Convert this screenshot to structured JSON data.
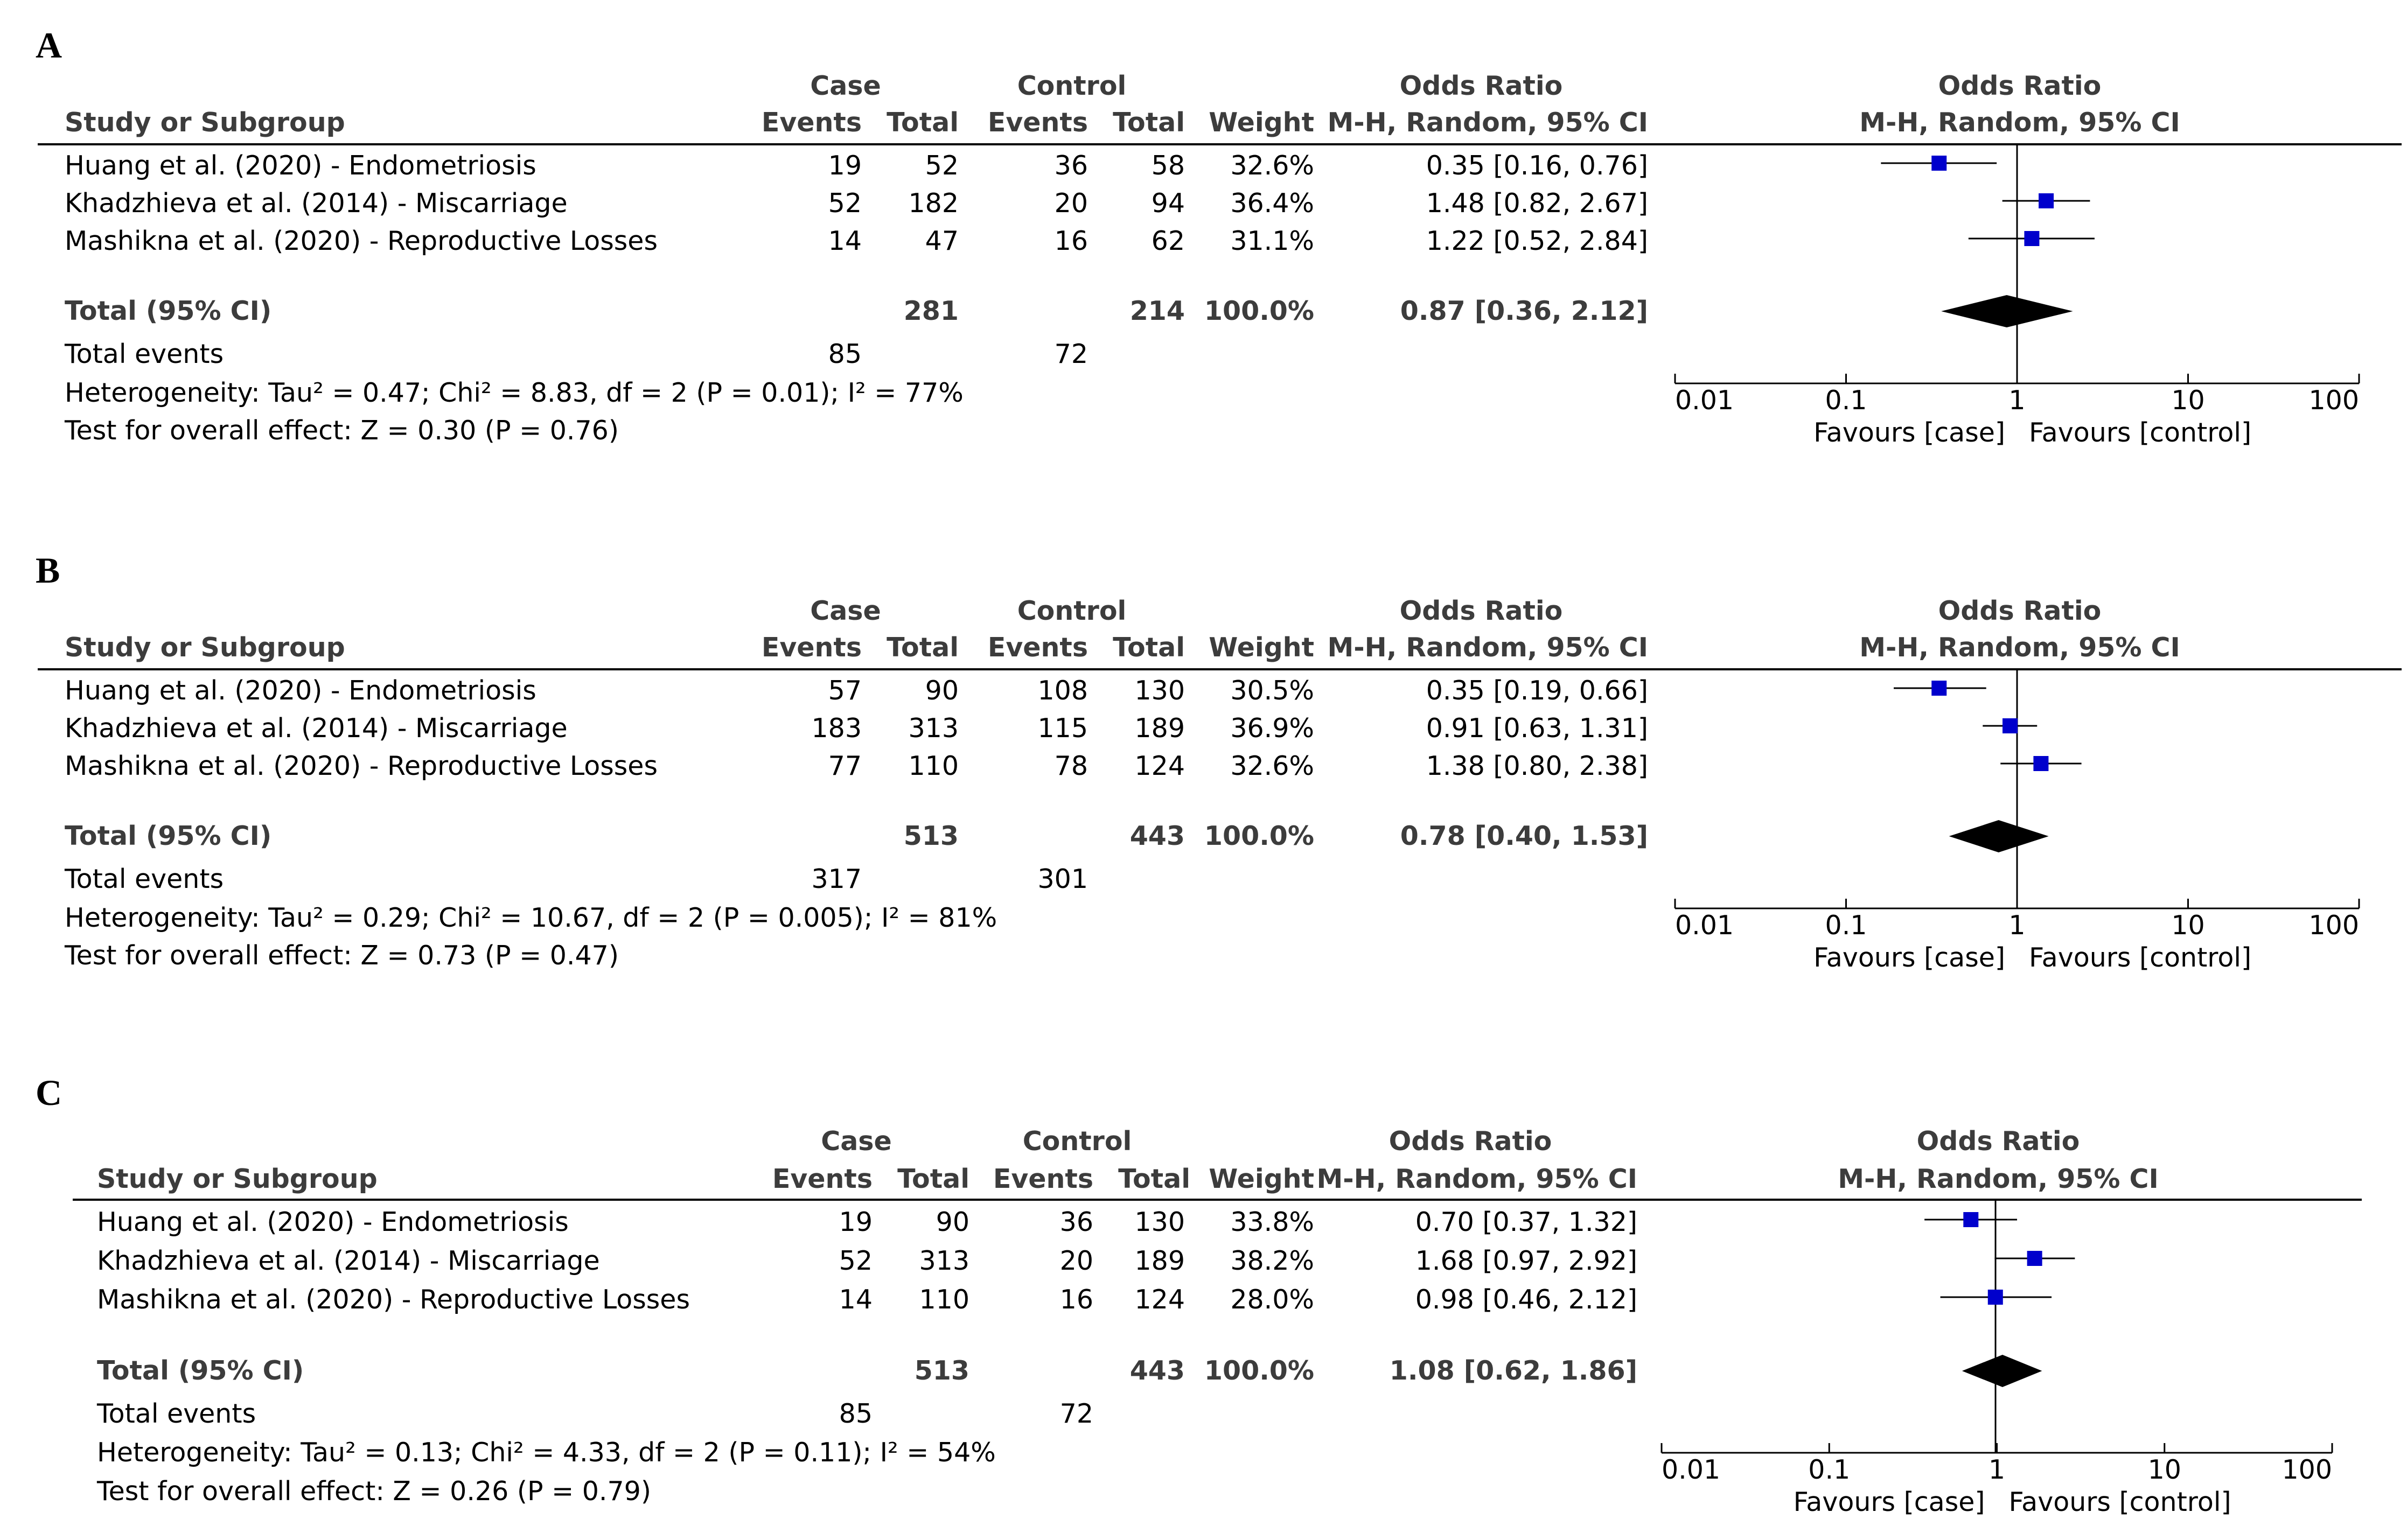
{
  "colors": {
    "marker": "#0000cc",
    "diamond": "#000000",
    "line": "#000000"
  },
  "headers": {
    "case": "Case",
    "control": "Control",
    "odds_ratio": "Odds Ratio",
    "study_or_subgroup": "Study or Subgroup",
    "events": "Events",
    "total": "Total",
    "weight": "Weight",
    "method": "M-H, Random, 95% CI"
  },
  "chart_data": [
    {
      "type": "forest",
      "panel": "A",
      "xscale": "log",
      "xlim": [
        0.01,
        100
      ],
      "xticks": [
        "0.01",
        "0.1",
        "1",
        "10",
        "100"
      ],
      "favours_left": "Favours [case]",
      "favours_right": "Favours [control]",
      "studies": [
        {
          "name": "Huang et al. (2020) - Endometriosis",
          "case_events": "19",
          "case_total": "52",
          "control_events": "36",
          "control_total": "58",
          "weight": "32.6%",
          "ci_text": "0.35 [0.16, 0.76]",
          "or": 0.35,
          "lo": 0.16,
          "hi": 0.76
        },
        {
          "name": "Khadzhieva et al. (2014) - Miscarriage",
          "case_events": "52",
          "case_total": "182",
          "control_events": "20",
          "control_total": "94",
          "weight": "36.4%",
          "ci_text": "1.48 [0.82, 2.67]",
          "or": 1.48,
          "lo": 0.82,
          "hi": 2.67
        },
        {
          "name": "Mashikna et al. (2020) - Reproductive Losses",
          "case_events": "14",
          "case_total": "47",
          "control_events": "16",
          "control_total": "62",
          "weight": "31.1%",
          "ci_text": "1.22 [0.52, 2.84]",
          "or": 1.22,
          "lo": 0.52,
          "hi": 2.84
        }
      ],
      "total": {
        "label": "Total (95% CI)",
        "case_total": "281",
        "control_total": "214",
        "weight": "100.0%",
        "ci_text": "0.87 [0.36, 2.12]",
        "or": 0.87,
        "lo": 0.36,
        "hi": 2.12
      },
      "total_events": {
        "label": "Total events",
        "case": "85",
        "control": "72"
      },
      "heterogeneity": "Heterogeneity: Tau² = 0.47; Chi² = 8.83, df = 2 (P = 0.01); I² = 77%",
      "overall_effect": "Test for overall effect: Z = 0.30 (P = 0.76)"
    },
    {
      "type": "forest",
      "panel": "B",
      "xscale": "log",
      "xlim": [
        0.01,
        100
      ],
      "xticks": [
        "0.01",
        "0.1",
        "1",
        "10",
        "100"
      ],
      "favours_left": "Favours [case]",
      "favours_right": "Favours [control]",
      "studies": [
        {
          "name": "Huang et al. (2020) - Endometriosis",
          "case_events": "57",
          "case_total": "90",
          "control_events": "108",
          "control_total": "130",
          "weight": "30.5%",
          "ci_text": "0.35 [0.19, 0.66]",
          "or": 0.35,
          "lo": 0.19,
          "hi": 0.66
        },
        {
          "name": "Khadzhieva et al. (2014) - Miscarriage",
          "case_events": "183",
          "case_total": "313",
          "control_events": "115",
          "control_total": "189",
          "weight": "36.9%",
          "ci_text": "0.91 [0.63, 1.31]",
          "or": 0.91,
          "lo": 0.63,
          "hi": 1.31
        },
        {
          "name": "Mashikna et al. (2020) - Reproductive Losses",
          "case_events": "77",
          "case_total": "110",
          "control_events": "78",
          "control_total": "124",
          "weight": "32.6%",
          "ci_text": "1.38 [0.80, 2.38]",
          "or": 1.38,
          "lo": 0.8,
          "hi": 2.38
        }
      ],
      "total": {
        "label": "Total (95% CI)",
        "case_total": "513",
        "control_total": "443",
        "weight": "100.0%",
        "ci_text": "0.78 [0.40, 1.53]",
        "or": 0.78,
        "lo": 0.4,
        "hi": 1.53
      },
      "total_events": {
        "label": "Total events",
        "case": "317",
        "control": "301"
      },
      "heterogeneity": "Heterogeneity: Tau² = 0.29; Chi² = 10.67, df = 2 (P = 0.005); I² = 81%",
      "overall_effect": "Test for overall effect: Z = 0.73 (P = 0.47)"
    },
    {
      "type": "forest",
      "panel": "C",
      "xscale": "log",
      "xlim": [
        0.01,
        100
      ],
      "xticks": [
        "0.01",
        "0.1",
        "1",
        "10",
        "100"
      ],
      "favours_left": "Favours [case]",
      "favours_right": "Favours [control]",
      "studies": [
        {
          "name": "Huang et al. (2020) - Endometriosis",
          "case_events": "19",
          "case_total": "90",
          "control_events": "36",
          "control_total": "130",
          "weight": "33.8%",
          "ci_text": "0.70 [0.37, 1.32]",
          "or": 0.7,
          "lo": 0.37,
          "hi": 1.32
        },
        {
          "name": "Khadzhieva et al. (2014) - Miscarriage",
          "case_events": "52",
          "case_total": "313",
          "control_events": "20",
          "control_total": "189",
          "weight": "38.2%",
          "ci_text": "1.68 [0.97, 2.92]",
          "or": 1.68,
          "lo": 0.97,
          "hi": 2.92
        },
        {
          "name": "Mashikna et al. (2020) - Reproductive Losses",
          "case_events": "14",
          "case_total": "110",
          "control_events": "16",
          "control_total": "124",
          "weight": "28.0%",
          "ci_text": "0.98 [0.46, 2.12]",
          "or": 0.98,
          "lo": 0.46,
          "hi": 2.12
        }
      ],
      "total": {
        "label": "Total (95% CI)",
        "case_total": "513",
        "control_total": "443",
        "weight": "100.0%",
        "ci_text": "1.08 [0.62, 1.86]",
        "or": 1.08,
        "lo": 0.62,
        "hi": 1.86
      },
      "total_events": {
        "label": "Total events",
        "case": "85",
        "control": "72"
      },
      "heterogeneity": "Heterogeneity: Tau² = 0.13; Chi² = 4.33, df = 2 (P = 0.11); I² = 54%",
      "overall_effect": "Test for overall effect: Z = 0.26 (P = 0.79)"
    }
  ]
}
